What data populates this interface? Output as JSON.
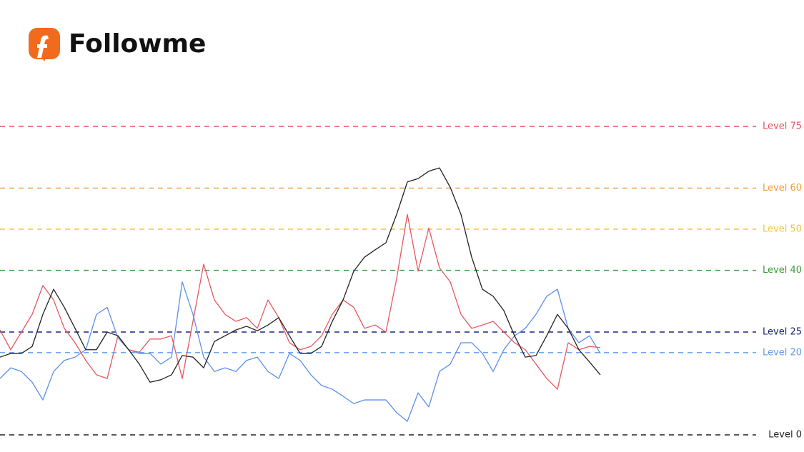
{
  "header": {
    "brand": "Followme"
  },
  "chart_data": {
    "type": "line",
    "ylim": [
      0,
      75
    ],
    "levels": [
      {
        "value": 75,
        "label": "Level 75",
        "color": "#e8505b"
      },
      {
        "value": 60,
        "label": "Level 60",
        "color": "#f39c34"
      },
      {
        "value": 50,
        "label": "Level 50",
        "color": "#f5c242"
      },
      {
        "value": 40,
        "label": "Level 40",
        "color": "#3a9a3a"
      },
      {
        "value": 25,
        "label": "Level 25",
        "color": "#1a237e"
      },
      {
        "value": 20,
        "label": "Level 20",
        "color": "#5b9bf0"
      },
      {
        "value": 0,
        "label": "Level 0",
        "color": "#222222"
      }
    ],
    "series": [
      {
        "color": "#222222",
        "values": [
          18.9,
          19.8,
          19.8,
          21.5,
          29.3,
          35.4,
          31,
          25.9,
          20.7,
          20.7,
          25,
          24.1,
          20.7,
          17.2,
          12.8,
          13.4,
          14.6,
          19.3,
          18.9,
          16.3,
          22.7,
          24.1,
          25.5,
          26.4,
          25.3,
          26.7,
          28.5,
          24.1,
          19.8,
          19.8,
          21.5,
          27.6,
          32.8,
          39.8,
          43.2,
          45,
          46.7,
          53.6,
          61.5,
          62.3,
          64.1,
          64.9,
          60.2,
          53.6,
          43.2,
          35.4,
          33.7,
          30.2,
          24.1,
          18.9,
          19.3,
          24.1,
          29.3,
          25.9,
          20.7,
          17.7,
          14.6
        ]
      },
      {
        "color": "#e8575f",
        "values": [
          25.5,
          20.7,
          25,
          29.3,
          36.3,
          32.8,
          25.9,
          22.4,
          18.1,
          14.6,
          13.7,
          24.1,
          20.7,
          20.1,
          23.3,
          23.3,
          24.1,
          13.7,
          27.6,
          41.5,
          32.8,
          29.3,
          27.6,
          28.5,
          25.9,
          32.8,
          28.5,
          22.4,
          20.7,
          21.5,
          24.1,
          29.3,
          32.8,
          31,
          25.9,
          26.7,
          25,
          38,
          53.6,
          39.8,
          50.3,
          40.6,
          37.2,
          29.3,
          25.9,
          26.7,
          27.6,
          25,
          22.4,
          20.7,
          17.2,
          13.7,
          11.1,
          22.4,
          20.7,
          21.5,
          21.2
        ]
      },
      {
        "color": "#5b8fe8",
        "values": [
          13.7,
          16.3,
          15.4,
          12.8,
          8.5,
          15.4,
          18.1,
          18.9,
          20.7,
          29.3,
          31,
          23.6,
          20.7,
          19.8,
          19.8,
          17.2,
          18.9,
          37.2,
          29.3,
          18.9,
          15.4,
          16.3,
          15.4,
          18.1,
          18.9,
          15.4,
          13.7,
          19.8,
          18.1,
          14.6,
          12,
          11.1,
          9.4,
          7.6,
          8.5,
          8.5,
          8.5,
          5.4,
          3.3,
          10.2,
          6.8,
          15.4,
          17.2,
          22.4,
          22.4,
          19.8,
          15.4,
          20.7,
          24.1,
          25.9,
          29.3,
          33.7,
          35.4,
          25.9,
          22.4,
          24.1,
          19.8
        ]
      }
    ]
  }
}
